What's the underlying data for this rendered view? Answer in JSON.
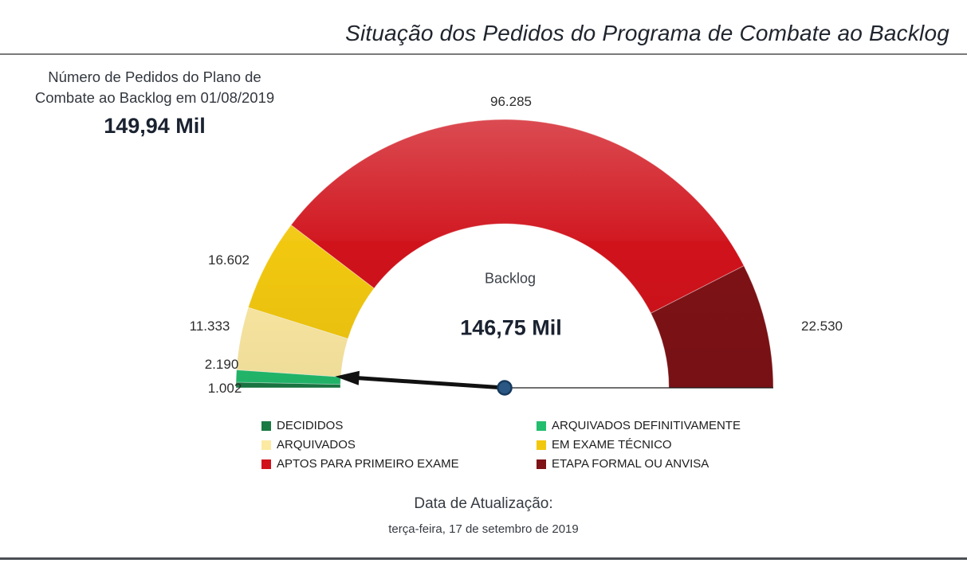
{
  "chart_data": {
    "type": "gauge",
    "title": "Situação dos Pedidos do Programa de Combate ao Backlog",
    "start_angle_deg": 180,
    "end_angle_deg": 0,
    "legend_position": "bottom",
    "total": 149942,
    "total_display": "149,94 Mil",
    "segments": [
      {
        "label": "DECIDIDOS",
        "value": 1002,
        "display": "1.002",
        "color": "#1a7a44"
      },
      {
        "label": "ARQUIVADOS DEFINITIVAMENTE",
        "value": 2190,
        "display": "2.190",
        "color": "#23bd6e"
      },
      {
        "label": "ARQUIVADOS",
        "value": 11333,
        "display": "11.333",
        "color": "#fce9a2"
      },
      {
        "label": "EM EXAME TÉCNICO",
        "value": 16602,
        "display": "16.602",
        "color": "#f2c80f"
      },
      {
        "label": "APTOS PARA PRIMEIRO EXAME",
        "value": 96285,
        "display": "96.285",
        "color": "#d0121b"
      },
      {
        "label": "ETAPA FORMAL OU ANVISA",
        "value": 22530,
        "display": "22.530",
        "color": "#7e1216"
      }
    ],
    "pointer": {
      "label": "Backlog",
      "value": 146750,
      "display": "146,75 Mil"
    }
  },
  "kpi": {
    "line1": "Número de Pedidos do Plano de",
    "line2": "Combate ao Backlog em 01/08/2019",
    "value": "149,94 Mil"
  },
  "footer": {
    "label": "Data de Atualização:",
    "date": "terça-feira, 17 de setembro de 2019"
  },
  "colors": {
    "needle": "#111111",
    "center_dot_fill": "#2a5783",
    "center_dot_stroke": "#173a5e",
    "baseline": "#1a1a1a"
  }
}
